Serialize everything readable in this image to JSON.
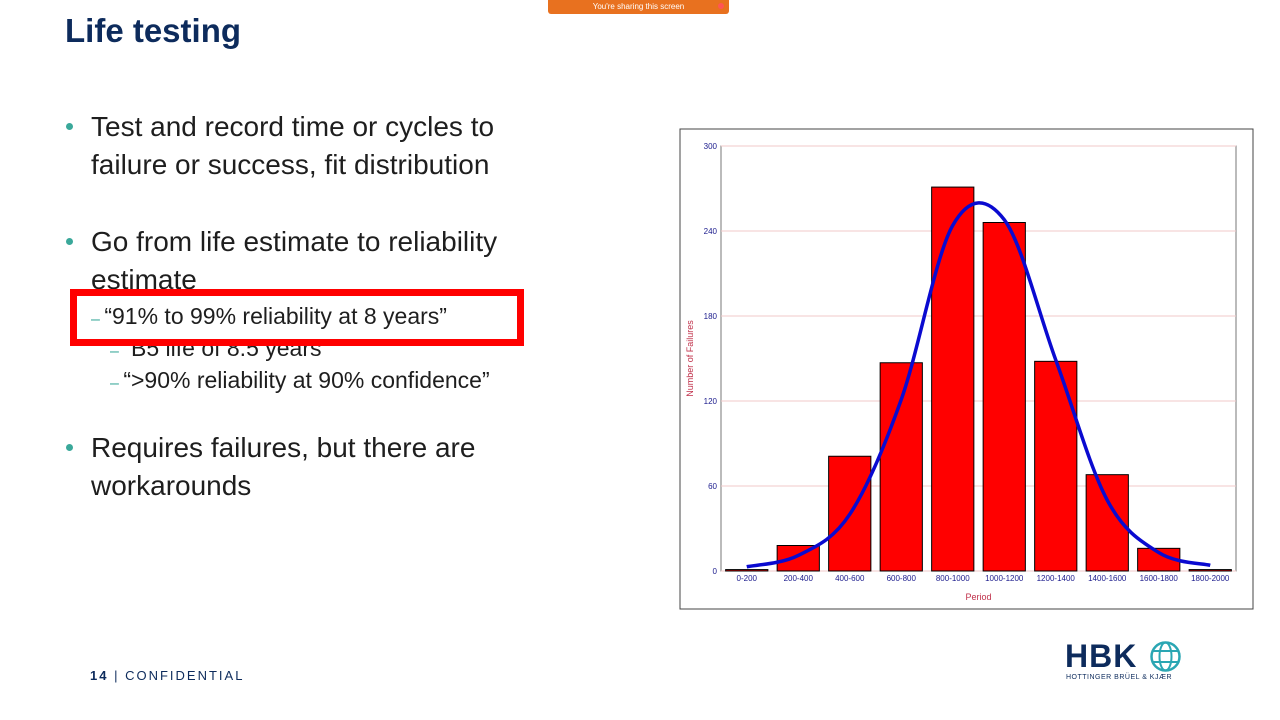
{
  "banner": "You're sharing this screen",
  "slide": {
    "title": "Life testing",
    "bullets": [
      "Test and record time or cycles to failure or success, fit distribution",
      "Go from life estimate to reliability estimate",
      "Requires failures, but there are workarounds"
    ],
    "sub_bullets": [
      "“91% to 99% reliability at 8 years”",
      "“B5 life of 8.5 years”",
      "“>90% reliability at 90% confidence”"
    ],
    "page_number": "14",
    "footer": "CONFIDENTIAL",
    "logo": "HBK",
    "logo_subtitle": "HOTTINGER BRÜEL & KJÆR"
  },
  "chart_data": {
    "type": "bar",
    "xlabel": "Period",
    "ylabel": "Number of Failures",
    "categories": [
      "0-200",
      "200-400",
      "400-600",
      "600-800",
      "800-1000",
      "1000-1200",
      "1200-1400",
      "1400-1600",
      "1600-1800",
      "1800-2000"
    ],
    "values": [
      1,
      18,
      81,
      147,
      271,
      246,
      148,
      68,
      16,
      1
    ],
    "color": "#ff0000",
    "line": {
      "values": [
        3,
        11,
        40,
        121,
        244,
        248,
        149,
        50,
        13,
        4
      ],
      "color": "#0a0ad0"
    },
    "ylim": [
      0,
      300
    ],
    "yticks": [
      0,
      60,
      120,
      180,
      240,
      300
    ],
    "grid": true
  }
}
